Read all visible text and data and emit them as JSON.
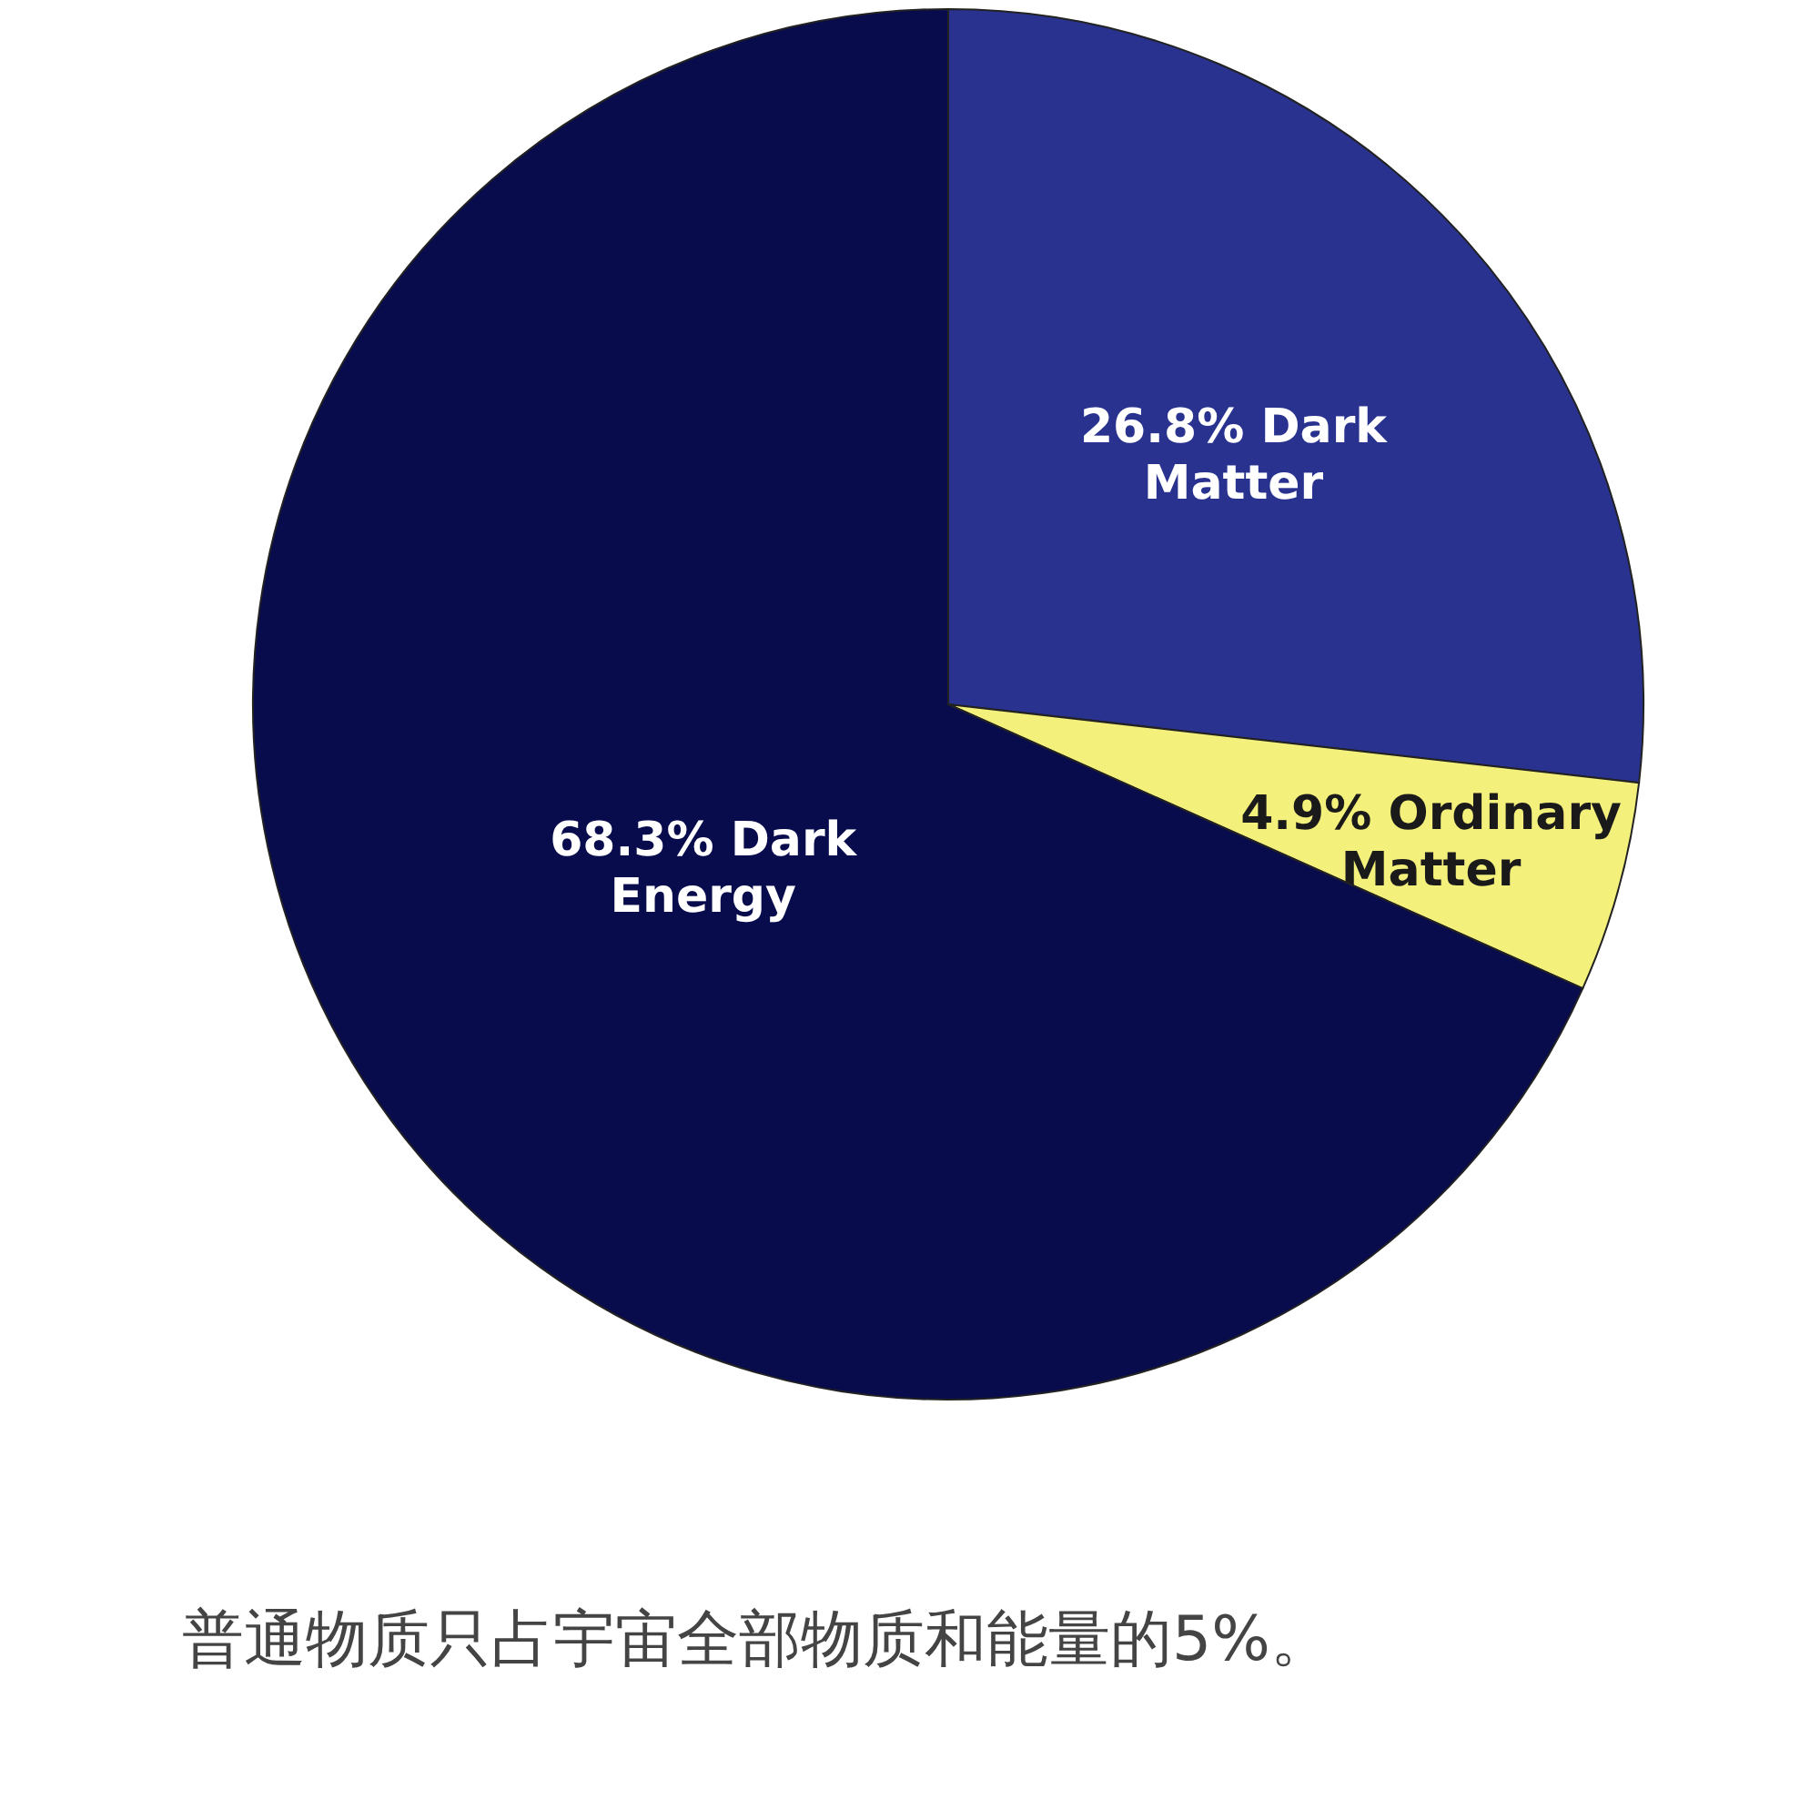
{
  "chart_data": {
    "type": "pie",
    "categories": [
      "Dark Matter",
      "Ordinary Matter",
      "Dark Energy"
    ],
    "values": [
      26.8,
      4.9,
      68.3
    ],
    "value_labels": [
      "26.8%",
      "4.9%",
      "68.3%"
    ],
    "colors": [
      "#29338f",
      "#f4f07c",
      "#080c4c"
    ],
    "annotations": [
      "普通物质只占宇宙全部物质和能量的5%。"
    ]
  }
}
